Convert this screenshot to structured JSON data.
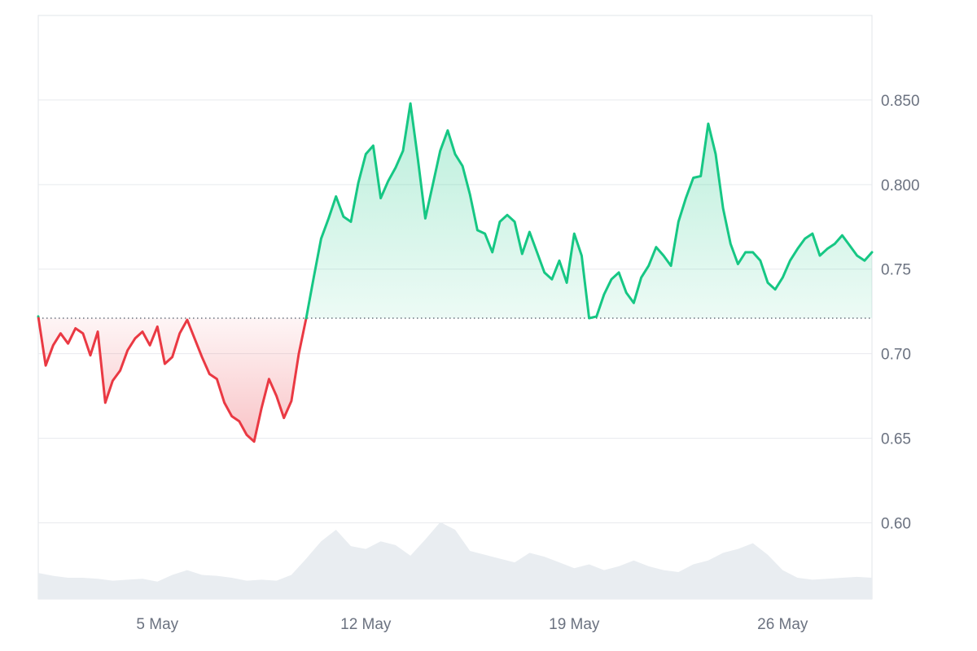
{
  "colors": {
    "up": "#16c784",
    "down": "#ea3943",
    "grid": "#e8eaee",
    "frame": "#e1e4e9",
    "axis_text": "#6b7280",
    "volume": "#e9edf1",
    "baseline": "#4b5563"
  },
  "chart_data": {
    "type": "line",
    "baseline": 0.721,
    "xlim": [
      "2024-05-01",
      "2024-05-29"
    ],
    "ylim": [
      0.555,
      0.9
    ],
    "y_ticks": [
      0.6,
      0.65,
      0.7,
      0.75,
      0.8,
      0.85
    ],
    "y_tick_labels": [
      "0.60",
      "0.65",
      "0.70",
      "0.75",
      "0.800",
      "0.850"
    ],
    "x_tick_dates": [
      "2024-05-05",
      "2024-05-12",
      "2024-05-19",
      "2024-05-26"
    ],
    "x_tick_labels": [
      "5 May",
      "12 May",
      "19 May",
      "26 May"
    ],
    "grid": true,
    "legend": "none",
    "series": [
      {
        "x": [
          "2024-05-01T00:00",
          "2024-05-01T06:00",
          "2024-05-01T12:00",
          "2024-05-01T18:00",
          "2024-05-02T00:00",
          "2024-05-02T06:00",
          "2024-05-02T12:00",
          "2024-05-02T18:00",
          "2024-05-03T00:00",
          "2024-05-03T06:00",
          "2024-05-03T12:00",
          "2024-05-03T18:00",
          "2024-05-04T00:00",
          "2024-05-04T06:00",
          "2024-05-04T12:00",
          "2024-05-04T18:00",
          "2024-05-05T00:00",
          "2024-05-05T06:00",
          "2024-05-05T12:00",
          "2024-05-05T18:00",
          "2024-05-06T00:00",
          "2024-05-06T06:00",
          "2024-05-06T12:00",
          "2024-05-06T18:00",
          "2024-05-07T00:00",
          "2024-05-07T06:00",
          "2024-05-07T12:00",
          "2024-05-07T18:00",
          "2024-05-08T00:00",
          "2024-05-08T06:00",
          "2024-05-08T12:00",
          "2024-05-08T18:00",
          "2024-05-09T00:00",
          "2024-05-09T06:00",
          "2024-05-09T12:00",
          "2024-05-09T18:00",
          "2024-05-10T00:00",
          "2024-05-10T06:00",
          "2024-05-10T12:00",
          "2024-05-10T18:00",
          "2024-05-11T00:00",
          "2024-05-11T06:00",
          "2024-05-11T12:00",
          "2024-05-11T18:00",
          "2024-05-12T00:00",
          "2024-05-12T06:00",
          "2024-05-12T12:00",
          "2024-05-12T18:00",
          "2024-05-13T00:00",
          "2024-05-13T06:00",
          "2024-05-13T12:00",
          "2024-05-13T18:00",
          "2024-05-14T00:00",
          "2024-05-14T06:00",
          "2024-05-14T12:00",
          "2024-05-14T18:00",
          "2024-05-15T00:00",
          "2024-05-15T06:00",
          "2024-05-15T12:00",
          "2024-05-15T18:00",
          "2024-05-16T00:00",
          "2024-05-16T06:00",
          "2024-05-16T12:00",
          "2024-05-16T18:00",
          "2024-05-17T00:00",
          "2024-05-17T06:00",
          "2024-05-17T12:00",
          "2024-05-17T18:00",
          "2024-05-18T00:00",
          "2024-05-18T06:00",
          "2024-05-18T12:00",
          "2024-05-18T18:00",
          "2024-05-19T00:00",
          "2024-05-19T06:00",
          "2024-05-19T12:00",
          "2024-05-19T18:00",
          "2024-05-20T00:00",
          "2024-05-20T06:00",
          "2024-05-20T12:00",
          "2024-05-20T18:00",
          "2024-05-21T00:00",
          "2024-05-21T06:00",
          "2024-05-21T12:00",
          "2024-05-21T18:00",
          "2024-05-22T00:00",
          "2024-05-22T06:00",
          "2024-05-22T12:00",
          "2024-05-22T18:00",
          "2024-05-23T00:00",
          "2024-05-23T06:00",
          "2024-05-23T12:00",
          "2024-05-23T18:00",
          "2024-05-24T00:00",
          "2024-05-24T06:00",
          "2024-05-24T12:00",
          "2024-05-24T18:00",
          "2024-05-25T00:00",
          "2024-05-25T06:00",
          "2024-05-25T12:00",
          "2024-05-25T18:00",
          "2024-05-26T00:00",
          "2024-05-26T06:00",
          "2024-05-26T12:00",
          "2024-05-26T18:00",
          "2024-05-27T00:00",
          "2024-05-27T06:00",
          "2024-05-27T12:00",
          "2024-05-27T18:00",
          "2024-05-28T00:00",
          "2024-05-28T06:00",
          "2024-05-28T12:00",
          "2024-05-28T18:00",
          "2024-05-29T00:00"
        ],
        "values": [
          0.722,
          0.693,
          0.705,
          0.712,
          0.706,
          0.715,
          0.712,
          0.699,
          0.713,
          0.671,
          0.684,
          0.69,
          0.702,
          0.709,
          0.713,
          0.705,
          0.716,
          0.694,
          0.698,
          0.712,
          0.72,
          0.709,
          0.698,
          0.688,
          0.685,
          0.671,
          0.663,
          0.66,
          0.652,
          0.648,
          0.668,
          0.685,
          0.675,
          0.662,
          0.672,
          0.7,
          0.721,
          0.745,
          0.768,
          0.78,
          0.793,
          0.781,
          0.778,
          0.801,
          0.818,
          0.823,
          0.792,
          0.802,
          0.81,
          0.82,
          0.848,
          0.815,
          0.78,
          0.8,
          0.82,
          0.832,
          0.818,
          0.811,
          0.794,
          0.773,
          0.771,
          0.76,
          0.778,
          0.782,
          0.778,
          0.759,
          0.772,
          0.76,
          0.748,
          0.744,
          0.755,
          0.742,
          0.771,
          0.758,
          0.721,
          0.722,
          0.735,
          0.744,
          0.748,
          0.736,
          0.73,
          0.745,
          0.752,
          0.763,
          0.758,
          0.752,
          0.778,
          0.792,
          0.804,
          0.805,
          0.836,
          0.818,
          0.786,
          0.765,
          0.753,
          0.76,
          0.76,
          0.755,
          0.742,
          0.738,
          0.745,
          0.755,
          0.762,
          0.768,
          0.771,
          0.758,
          0.762,
          0.765,
          0.77,
          0.764,
          0.758,
          0.755,
          0.76
        ]
      }
    ],
    "volume": {
      "x": [
        "2024-05-01T00:00",
        "2024-05-01T12:00",
        "2024-05-02T00:00",
        "2024-05-02T12:00",
        "2024-05-03T00:00",
        "2024-05-03T12:00",
        "2024-05-04T00:00",
        "2024-05-04T12:00",
        "2024-05-05T00:00",
        "2024-05-05T12:00",
        "2024-05-06T00:00",
        "2024-05-06T12:00",
        "2024-05-07T00:00",
        "2024-05-07T12:00",
        "2024-05-08T00:00",
        "2024-05-08T12:00",
        "2024-05-09T00:00",
        "2024-05-09T12:00",
        "2024-05-10T00:00",
        "2024-05-10T12:00",
        "2024-05-11T00:00",
        "2024-05-11T12:00",
        "2024-05-12T00:00",
        "2024-05-12T12:00",
        "2024-05-13T00:00",
        "2024-05-13T12:00",
        "2024-05-14T00:00",
        "2024-05-14T12:00",
        "2024-05-15T00:00",
        "2024-05-15T12:00",
        "2024-05-16T00:00",
        "2024-05-16T12:00",
        "2024-05-17T00:00",
        "2024-05-17T12:00",
        "2024-05-18T00:00",
        "2024-05-18T12:00",
        "2024-05-19T00:00",
        "2024-05-19T12:00",
        "2024-05-20T00:00",
        "2024-05-20T12:00",
        "2024-05-21T00:00",
        "2024-05-21T12:00",
        "2024-05-22T00:00",
        "2024-05-22T12:00",
        "2024-05-23T00:00",
        "2024-05-23T12:00",
        "2024-05-24T00:00",
        "2024-05-24T12:00",
        "2024-05-25T00:00",
        "2024-05-25T12:00",
        "2024-05-26T00:00",
        "2024-05-26T12:00",
        "2024-05-27T00:00",
        "2024-05-27T12:00",
        "2024-05-28T00:00",
        "2024-05-28T12:00",
        "2024-05-29T00:00"
      ],
      "relative": [
        0.27,
        0.24,
        0.22,
        0.22,
        0.21,
        0.19,
        0.2,
        0.21,
        0.18,
        0.25,
        0.3,
        0.25,
        0.24,
        0.22,
        0.19,
        0.2,
        0.19,
        0.25,
        0.42,
        0.6,
        0.72,
        0.55,
        0.52,
        0.6,
        0.56,
        0.45,
        0.62,
        0.8,
        0.72,
        0.5,
        0.46,
        0.42,
        0.38,
        0.48,
        0.44,
        0.38,
        0.32,
        0.36,
        0.3,
        0.34,
        0.4,
        0.34,
        0.3,
        0.28,
        0.36,
        0.4,
        0.48,
        0.52,
        0.58,
        0.46,
        0.3,
        0.22,
        0.2,
        0.21,
        0.22,
        0.23,
        0.22
      ]
    }
  }
}
